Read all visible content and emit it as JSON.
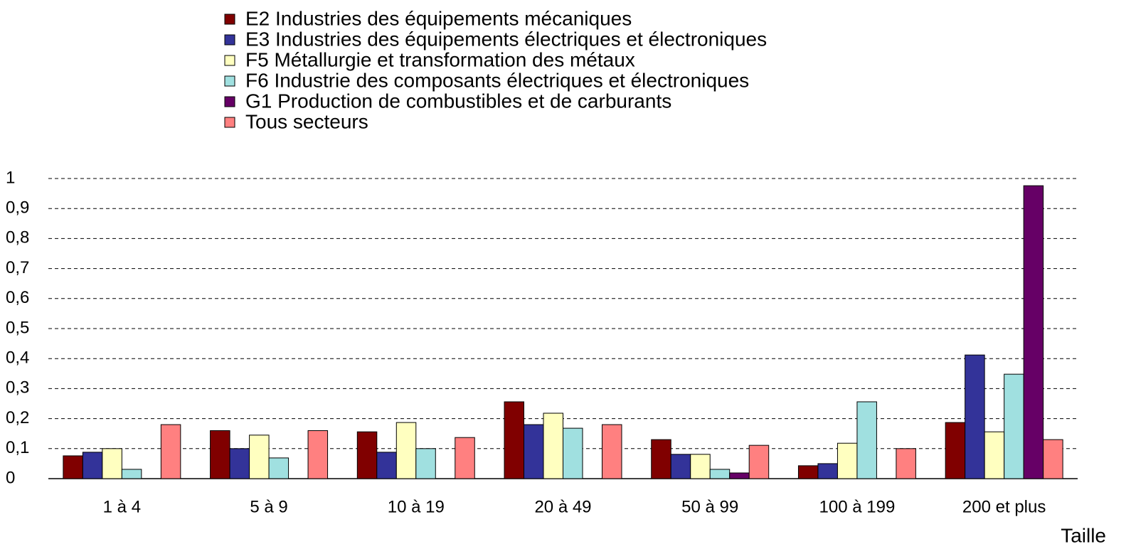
{
  "chart_data": {
    "type": "bar",
    "x_label": "Taille",
    "categories": [
      "1 à 4",
      "5 à 9",
      "10 à 19",
      "20 à 49",
      "50 à 99",
      "100 à 199",
      "200 et plus"
    ],
    "series": [
      {
        "name": "E2 Industries des équipements mécaniques",
        "color": "#800000",
        "values": [
          0.076,
          0.16,
          0.156,
          0.256,
          0.13,
          0.043,
          0.187
        ]
      },
      {
        "name": "E3 Industries des équipements électriques et électroniques",
        "color": "#333399",
        "values": [
          0.088,
          0.1,
          0.088,
          0.18,
          0.081,
          0.05,
          0.412
        ]
      },
      {
        "name": "F5 Métallurgie et transformation des métaux",
        "color": "#ffffc0",
        "values": [
          0.1,
          0.145,
          0.187,
          0.218,
          0.081,
          0.118,
          0.156
        ]
      },
      {
        "name": " F6 Industrie des composants électriques et électroniques",
        "color": "#a0e0e0",
        "values": [
          0.031,
          0.069,
          0.1,
          0.168,
          0.031,
          0.256,
          0.348
        ]
      },
      {
        "name": "G1 Production de combustibles et de carburants",
        "color": "#660066",
        "values": [
          null,
          null,
          null,
          null,
          0.019,
          null,
          0.976
        ]
      },
      {
        "name": "Tous secteurs",
        "color": "#ff8080",
        "values": [
          0.18,
          0.16,
          0.137,
          0.18,
          0.111,
          0.1,
          0.13
        ]
      }
    ],
    "ylim": [
      0,
      1
    ],
    "yticks": [
      0,
      {
        "value": 0.1,
        "label": "0,1"
      },
      {
        "value": 0.2,
        "label": "0,2"
      },
      {
        "value": 0.3,
        "label": "0,3"
      },
      {
        "value": 0.4,
        "label": "0,4"
      },
      {
        "value": 0.5,
        "label": "0,5"
      },
      {
        "value": 0.6,
        "label": "0,6"
      },
      {
        "value": 0.7,
        "label": "0,7"
      },
      {
        "value": 0.8,
        "label": "0,8"
      },
      {
        "value": 0.9,
        "label": "0,9"
      },
      1
    ],
    "grid": true
  }
}
